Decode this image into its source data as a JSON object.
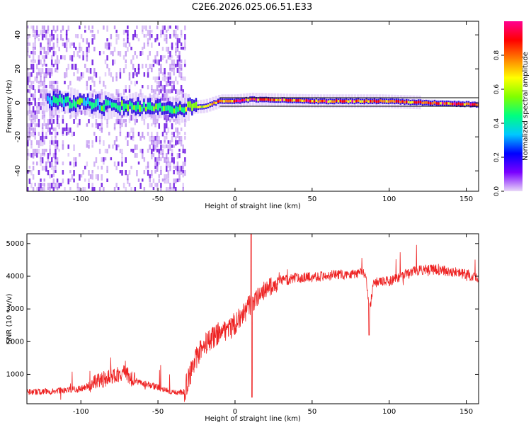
{
  "title": "C2E6.2026.025.06.51.E33",
  "chart_data": [
    {
      "type": "heatmap",
      "name": "spectrogram",
      "xlabel": "Height of straight line (km)",
      "ylabel": "Frequency (Hz)",
      "xlim": [
        -135,
        158
      ],
      "ylim": [
        -52,
        48
      ],
      "xticks": [
        -100,
        -50,
        0,
        50,
        100,
        150
      ],
      "yticks": [
        -40,
        -20,
        0,
        20,
        40
      ],
      "colorbar": {
        "label": "Normalized spectral amplitude",
        "range": [
          0.0,
          1.0
        ],
        "ticks": [
          0.0,
          0.2,
          0.4,
          0.6,
          0.8
        ],
        "colormap": [
          "#e9d8f8",
          "#7a00ff",
          "#0000ff",
          "#00c8ff",
          "#00ff80",
          "#80ff00",
          "#ffff00",
          "#ff8000",
          "#ff0000",
          "#ff0090"
        ]
      },
      "colors": {
        "noise": "#9a55e8",
        "core": "#2000e0",
        "ridge": "#ff3030"
      },
      "ridge": [
        {
          "h": -135,
          "f": 2,
          "amp": 0.2
        },
        {
          "h": -118,
          "f": 1,
          "amp": 0.45
        },
        {
          "h": -80,
          "f": -2,
          "amp": 0.5
        },
        {
          "h": -35,
          "f": -3,
          "amp": 0.55
        },
        {
          "h": -20,
          "f": -2,
          "amp": 0.7
        },
        {
          "h": -10,
          "f": 1,
          "amp": 0.85
        },
        {
          "h": 0,
          "f": 1,
          "amp": 0.9
        },
        {
          "h": 10,
          "f": 2,
          "amp": 0.9
        },
        {
          "h": 50,
          "f": 1,
          "amp": 0.9
        },
        {
          "h": 95,
          "f": 1,
          "amp": 0.85
        },
        {
          "h": 158,
          "f": -1,
          "amp": 0.95
        }
      ]
    },
    {
      "type": "line",
      "name": "snr",
      "xlabel": "Height of straight line (km)",
      "ylabel": "SNR (10 * v/v)",
      "xlim": [
        -135,
        158
      ],
      "ylim": [
        100,
        5300
      ],
      "xticks": [
        -100,
        -50,
        0,
        50,
        100,
        150
      ],
      "yticks": [
        1000,
        2000,
        3000,
        4000,
        5000
      ],
      "color": "#ee2222",
      "series": [
        {
          "name": "SNR",
          "x": [
            -135,
            -120,
            -100,
            -90,
            -80,
            -72,
            -65,
            -50,
            -40,
            -33,
            -30,
            -25,
            -20,
            -10,
            -5,
            0,
            5,
            9,
            12,
            15,
            20,
            25,
            30,
            40,
            50,
            60,
            70,
            80,
            85,
            87,
            90,
            100,
            110,
            120,
            130,
            140,
            150,
            158
          ],
          "y": [
            450,
            480,
            550,
            750,
            950,
            1050,
            800,
            600,
            450,
            450,
            900,
            1500,
            1900,
            2300,
            2400,
            2550,
            2800,
            3100,
            3200,
            3400,
            3600,
            3750,
            3850,
            3950,
            3980,
            4020,
            4050,
            4100,
            4100,
            2900,
            3800,
            3850,
            4050,
            4200,
            4200,
            4150,
            4050,
            3950
          ]
        }
      ]
    }
  ]
}
